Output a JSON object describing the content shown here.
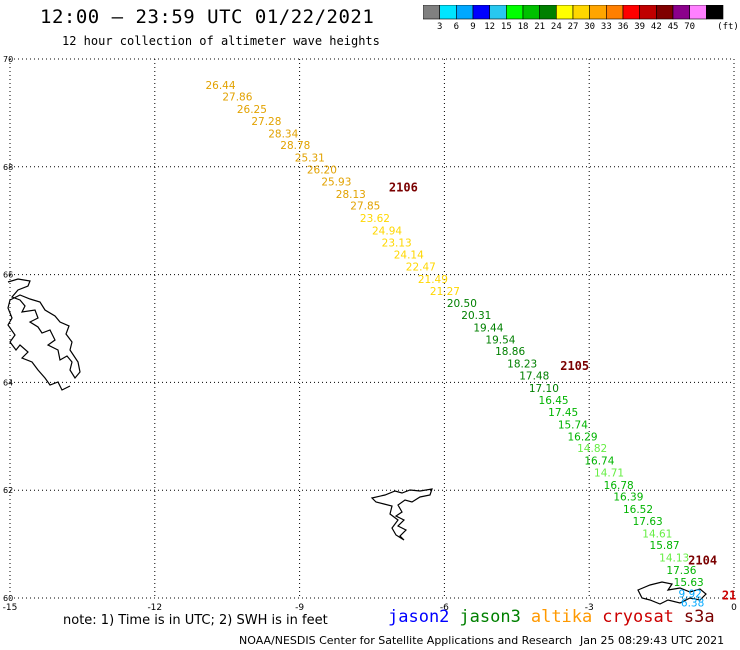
{
  "header": {
    "title": "12:00 – 23:59 UTC 01/22/2021",
    "subtitle": "12 hour collection of altimeter wave heights"
  },
  "colorbar": {
    "colors": [
      "#808080",
      "#00e5ff",
      "#00a8ff",
      "#0000ff",
      "#28c8f0",
      "#00ff00",
      "#00c000",
      "#008000",
      "#ffff00",
      "#ffd700",
      "#ffa500",
      "#ff7f00",
      "#ff0000",
      "#c00000",
      "#800000",
      "#8b008b",
      "#ff80ff",
      "#000000"
    ],
    "labels": [
      "3",
      "6",
      "9",
      "12",
      "15",
      "18",
      "21",
      "24",
      "27",
      "30",
      "33",
      "36",
      "39",
      "42",
      "45",
      "70"
    ],
    "unit": "(ft)"
  },
  "note": "note:  1) Time is in UTC;  2) SWH is in feet",
  "legend": [
    {
      "name": "jason2",
      "color": "#0000ff"
    },
    {
      "name": "jason3",
      "color": "#008000"
    },
    {
      "name": "altika",
      "color": "#ff9900"
    },
    {
      "name": "cryosat",
      "color": "#cc0000"
    },
    {
      "name": "s3a",
      "color": "#7a0000"
    }
  ],
  "credit": "NOAA/NESDIS Center for Satellite Applications and Research",
  "timestamp": "Jan 25 08:29:43 UTC 2021",
  "chart_data": {
    "type": "scatter",
    "xlim": [
      -15,
      0
    ],
    "ylim": [
      60,
      70
    ],
    "x_ticks": [
      {
        "v": -15,
        "label": "-15"
      },
      {
        "v": -12,
        "label": "-12"
      },
      {
        "v": -9,
        "label": "-9"
      },
      {
        "v": -6,
        "label": "-6"
      },
      {
        "v": -3,
        "label": "-3"
      },
      {
        "v": 0,
        "label": "0"
      }
    ],
    "y_ticks": [
      {
        "v": 60,
        "label": "60"
      },
      {
        "v": 62,
        "label": "62"
      },
      {
        "v": 64,
        "label": "64"
      },
      {
        "v": 66,
        "label": "66"
      },
      {
        "v": 68,
        "label": "68"
      },
      {
        "v": 70,
        "label": "70"
      }
    ],
    "grid": true,
    "pass_labels": [
      {
        "text": "2106",
        "lon": -7.15,
        "lat": 67.62,
        "color": "#7a0000"
      },
      {
        "text": "2105",
        "lon": -3.6,
        "lat": 64.3,
        "color": "#7a0000"
      },
      {
        "text": "2104",
        "lon": -0.95,
        "lat": 60.7,
        "color": "#7a0000"
      },
      {
        "text": "21",
        "lon": -0.25,
        "lat": 60.05,
        "color": "#cc0000"
      }
    ],
    "points": [
      {
        "lon": -10.95,
        "lat": 69.52,
        "swh": "26.44",
        "color": "#e2a200"
      },
      {
        "lon": -10.6,
        "lat": 69.3,
        "swh": "27.86",
        "color": "#e2a200"
      },
      {
        "lon": -10.3,
        "lat": 69.07,
        "swh": "26.25",
        "color": "#e2a200"
      },
      {
        "lon": -10.0,
        "lat": 68.85,
        "swh": "27.28",
        "color": "#e2a200"
      },
      {
        "lon": -9.65,
        "lat": 68.62,
        "swh": "28.34",
        "color": "#e2a200"
      },
      {
        "lon": -9.4,
        "lat": 68.4,
        "swh": "28.78",
        "color": "#e2a200"
      },
      {
        "lon": -9.1,
        "lat": 68.17,
        "swh": "25.31",
        "color": "#e2a200"
      },
      {
        "lon": -8.85,
        "lat": 67.95,
        "swh": "26.20",
        "color": "#e2a200"
      },
      {
        "lon": -8.55,
        "lat": 67.73,
        "swh": "25.93",
        "color": "#e2a200"
      },
      {
        "lon": -8.25,
        "lat": 67.5,
        "swh": "28.13",
        "color": "#e2a200"
      },
      {
        "lon": -7.95,
        "lat": 67.28,
        "swh": "27.85",
        "color": "#e2a200"
      },
      {
        "lon": -7.75,
        "lat": 67.05,
        "swh": "23.62",
        "color": "#ffd700"
      },
      {
        "lon": -7.5,
        "lat": 66.82,
        "swh": "24.94",
        "color": "#ffd700"
      },
      {
        "lon": -7.3,
        "lat": 66.6,
        "swh": "23.13",
        "color": "#ffd700"
      },
      {
        "lon": -7.05,
        "lat": 66.37,
        "swh": "24.14",
        "color": "#ffd700"
      },
      {
        "lon": -6.8,
        "lat": 66.15,
        "swh": "22.47",
        "color": "#ffd700"
      },
      {
        "lon": -6.55,
        "lat": 65.92,
        "swh": "21.49",
        "color": "#ffd700"
      },
      {
        "lon": -6.3,
        "lat": 65.7,
        "swh": "21.27",
        "color": "#ffd700"
      },
      {
        "lon": -5.95,
        "lat": 65.47,
        "swh": "20.50",
        "color": "#008000"
      },
      {
        "lon": -5.65,
        "lat": 65.25,
        "swh": "20.31",
        "color": "#008000"
      },
      {
        "lon": -5.4,
        "lat": 65.02,
        "swh": "19.44",
        "color": "#008000"
      },
      {
        "lon": -5.15,
        "lat": 64.8,
        "swh": "19.54",
        "color": "#008000"
      },
      {
        "lon": -4.95,
        "lat": 64.58,
        "swh": "18.86",
        "color": "#008000"
      },
      {
        "lon": -4.7,
        "lat": 64.35,
        "swh": "18.23",
        "color": "#008000"
      },
      {
        "lon": -4.45,
        "lat": 64.13,
        "swh": "17.48",
        "color": "#008000"
      },
      {
        "lon": -4.25,
        "lat": 63.9,
        "swh": "17.10",
        "color": "#008000"
      },
      {
        "lon": -4.05,
        "lat": 63.67,
        "swh": "16.45",
        "color": "#00b400"
      },
      {
        "lon": -3.85,
        "lat": 63.45,
        "swh": "17.45",
        "color": "#00b400"
      },
      {
        "lon": -3.65,
        "lat": 63.22,
        "swh": "15.74",
        "color": "#00b400"
      },
      {
        "lon": -3.45,
        "lat": 63.0,
        "swh": "16.29",
        "color": "#00b400"
      },
      {
        "lon": -3.25,
        "lat": 62.78,
        "swh": "14.82",
        "color": "#66ee44"
      },
      {
        "lon": -3.1,
        "lat": 62.55,
        "swh": "16.74",
        "color": "#00b400"
      },
      {
        "lon": -2.9,
        "lat": 62.33,
        "swh": "14.71",
        "color": "#66ee44"
      },
      {
        "lon": -2.7,
        "lat": 62.1,
        "swh": "16.78",
        "color": "#00b400"
      },
      {
        "lon": -2.5,
        "lat": 61.88,
        "swh": "16.39",
        "color": "#00b400"
      },
      {
        "lon": -2.3,
        "lat": 61.65,
        "swh": "16.52",
        "color": "#00b400"
      },
      {
        "lon": -2.1,
        "lat": 61.43,
        "swh": "17.63",
        "color": "#00b400"
      },
      {
        "lon": -1.9,
        "lat": 61.2,
        "swh": "14.61",
        "color": "#66ee44"
      },
      {
        "lon": -1.75,
        "lat": 60.98,
        "swh": "15.87",
        "color": "#00b400"
      },
      {
        "lon": -1.55,
        "lat": 60.75,
        "swh": "14.13",
        "color": "#66ee44"
      },
      {
        "lon": -1.4,
        "lat": 60.52,
        "swh": "17.36",
        "color": "#00b400"
      },
      {
        "lon": -1.25,
        "lat": 60.3,
        "swh": "15.63",
        "color": "#00b400"
      },
      {
        "lon": -1.15,
        "lat": 60.08,
        "swh": "9.92",
        "color": "#00a8ff"
      },
      {
        "lon": -1.1,
        "lat": 59.92,
        "swh": "6.38",
        "color": "#00a8ff"
      }
    ]
  }
}
